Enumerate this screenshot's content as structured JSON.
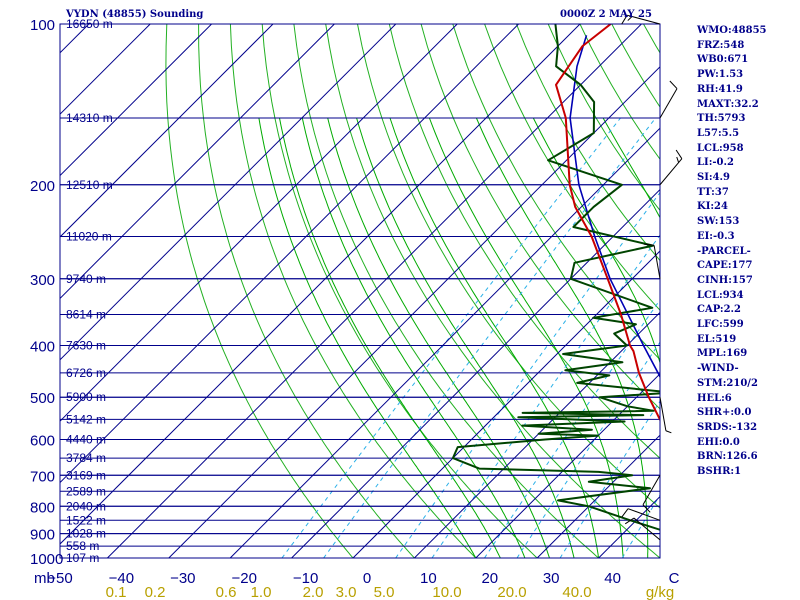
{
  "header": {
    "title": "VYDN (48855) Sounding",
    "datetime": "0000Z  2 MAY 25"
  },
  "indices": [
    "WMO:48855",
    "FRZ:548",
    "WB0:671",
    "PW:1.53",
    "RH:41.9",
    "MAXT:32.2",
    "TH:5793",
    "L57:5.5",
    "LCL:958",
    "LI:-0.2",
    "SI:4.9",
    "TT:37",
    "KI:24",
    "SW:153",
    "EI:-0.3",
    "-PARCEL-",
    "CAPE:177",
    "CINH:157",
    "LCL:934",
    "CAP:2.2",
    "LFC:599",
    "EL:519",
    "MPL:169",
    "-WIND-",
    "STM:210/2",
    "HEL:6",
    "SHR+:0.0",
    "SRDS:-132",
    "EHI:0.0",
    "BRN:126.6",
    "BSHR:1"
  ],
  "colors": {
    "frame": "#00008b",
    "isobar": "#00008b",
    "isotherm": "#00008b",
    "dry_adiabat": "#22b022",
    "moist_adiabat": "#00aa00",
    "mixing_ratio": "#2ab0e8",
    "temperature": "#c80000",
    "dewpoint": "#004400",
    "parcel": "#0000b4",
    "axis_text": "#00008b",
    "mixing_text": "#b8a000",
    "barb": "#000000"
  },
  "chart_data": {
    "type": "skew-t",
    "pressure_unit": "mb",
    "temperature_unit": "C",
    "mixing_ratio_unit": "g/kg",
    "ylim": [
      1000,
      100
    ],
    "xlim": [
      -50,
      50
    ],
    "pressure_ticks": [
      100,
      200,
      300,
      400,
      500,
      600,
      700,
      800,
      900,
      1000
    ],
    "temperature_ticks": [
      -50,
      -40,
      -30,
      -20,
      -10,
      0,
      10,
      20,
      30,
      40
    ],
    "temperature_tick_labels": [
      "−50",
      "−40",
      "−30",
      "−20",
      "−10",
      "0",
      "10",
      "20",
      "30",
      "40",
      "C"
    ],
    "y_axis_title": "mb",
    "mixing_ratio_labels": [
      "0.1",
      "0.2",
      "0.6",
      "1.0",
      "2.0",
      "3.0",
      "5.0",
      "10.0",
      "20.0",
      "40.0",
      "g/kg"
    ],
    "height_levels": [
      {
        "p": 100,
        "label": "16650 m"
      },
      {
        "p": 150,
        "label": "14310 m"
      },
      {
        "p": 200,
        "label": "12510 m"
      },
      {
        "p": 250,
        "label": "11020 m"
      },
      {
        "p": 300,
        "label": "9740 m"
      },
      {
        "p": 350,
        "label": "8614 m"
      },
      {
        "p": 400,
        "label": "7630 m"
      },
      {
        "p": 450,
        "label": "6726 m"
      },
      {
        "p": 500,
        "label": "5900 m"
      },
      {
        "p": 550,
        "label": "5142 m"
      },
      {
        "p": 600,
        "label": "4440 m"
      },
      {
        "p": 650,
        "label": "3784 m"
      },
      {
        "p": 700,
        "label": "3169 m"
      },
      {
        "p": 750,
        "label": "2589 m"
      },
      {
        "p": 800,
        "label": "2040 m"
      },
      {
        "p": 850,
        "label": "1522 m"
      },
      {
        "p": 900,
        "label": "1028 m"
      },
      {
        "p": 950,
        "label": "558 m"
      },
      {
        "p": 1000,
        "label": "107 m"
      }
    ],
    "temperature": [
      {
        "p": 1000,
        "t": 29.5
      },
      {
        "p": 985,
        "t": 25.5
      },
      {
        "p": 950,
        "t": 23.4
      },
      {
        "p": 900,
        "t": 22.5
      },
      {
        "p": 850,
        "t": 21.5
      },
      {
        "p": 800,
        "t": 18.5
      },
      {
        "p": 760,
        "t": 14.5
      },
      {
        "p": 730,
        "t": 12
      },
      {
        "p": 700,
        "t": 9.6
      },
      {
        "p": 650,
        "t": 6.5
      },
      {
        "p": 600,
        "t": 2.5
      },
      {
        "p": 550,
        "t": -2.6
      },
      {
        "p": 500,
        "t": -8
      },
      {
        "p": 450,
        "t": -13.6
      },
      {
        "p": 410,
        "t": -18
      },
      {
        "p": 400,
        "t": -19.5
      },
      {
        "p": 350,
        "t": -26
      },
      {
        "p": 300,
        "t": -34
      },
      {
        "p": 250,
        "t": -43.5
      },
      {
        "p": 220,
        "t": -51
      },
      {
        "p": 200,
        "t": -55.5
      },
      {
        "p": 150,
        "t": -67
      },
      {
        "p": 130,
        "t": -74
      },
      {
        "p": 110,
        "t": -76
      },
      {
        "p": 100,
        "t": -75
      }
    ],
    "dewpoint": [
      {
        "p": 1000,
        "t": 22.5
      },
      {
        "p": 985,
        "t": 22
      },
      {
        "p": 950,
        "t": 22
      },
      {
        "p": 900,
        "t": 18
      },
      {
        "p": 850,
        "t": 9
      },
      {
        "p": 800,
        "t": 0
      },
      {
        "p": 780,
        "t": -6
      },
      {
        "p": 740,
        "t": 7
      },
      {
        "p": 720,
        "t": -4
      },
      {
        "p": 700,
        "t": 2
      },
      {
        "p": 690,
        "t": -4
      },
      {
        "p": 680,
        "t": -24
      },
      {
        "p": 650,
        "t": -30
      },
      {
        "p": 620,
        "t": -31
      },
      {
        "p": 600,
        "t": -18
      },
      {
        "p": 590,
        "t": -10
      },
      {
        "p": 585,
        "t": -20
      },
      {
        "p": 575,
        "t": -12
      },
      {
        "p": 565,
        "t": -24
      },
      {
        "p": 555,
        "t": -8
      },
      {
        "p": 545,
        "t": -26
      },
      {
        "p": 540,
        "t": -6
      },
      {
        "p": 535,
        "t": -26
      },
      {
        "p": 530,
        "t": -5
      },
      {
        "p": 520,
        "t": -10
      },
      {
        "p": 500,
        "t": -16
      },
      {
        "p": 490,
        "t": -5
      },
      {
        "p": 470,
        "t": -22
      },
      {
        "p": 455,
        "t": -18
      },
      {
        "p": 445,
        "t": -26
      },
      {
        "p": 430,
        "t": -18
      },
      {
        "p": 415,
        "t": -29
      },
      {
        "p": 400,
        "t": -20
      },
      {
        "p": 380,
        "t": -24
      },
      {
        "p": 365,
        "t": -22
      },
      {
        "p": 355,
        "t": -30
      },
      {
        "p": 340,
        "t": -22
      },
      {
        "p": 300,
        "t": -40
      },
      {
        "p": 280,
        "t": -42
      },
      {
        "p": 260,
        "t": -32
      },
      {
        "p": 240,
        "t": -48
      },
      {
        "p": 220,
        "t": -48
      },
      {
        "p": 200,
        "t": -47
      },
      {
        "p": 180,
        "t": -63
      },
      {
        "p": 160,
        "t": -60
      },
      {
        "p": 140,
        "t": -65
      },
      {
        "p": 130,
        "t": -70
      },
      {
        "p": 120,
        "t": -77
      },
      {
        "p": 110,
        "t": -80
      },
      {
        "p": 100,
        "t": -84
      }
    ],
    "parcel": [
      {
        "p": 1000,
        "t": 25.5
      },
      {
        "p": 950,
        "t": 21.5
      },
      {
        "p": 934,
        "t": 20.5
      },
      {
        "p": 900,
        "t": 20
      },
      {
        "p": 850,
        "t": 19.5
      },
      {
        "p": 800,
        "t": 17.5
      },
      {
        "p": 700,
        "t": 12.2
      },
      {
        "p": 600,
        "t": 5.3
      },
      {
        "p": 500,
        "t": -4.4
      },
      {
        "p": 400,
        "t": -17.3
      },
      {
        "p": 300,
        "t": -33.6
      },
      {
        "p": 250,
        "t": -43
      },
      {
        "p": 200,
        "t": -54
      },
      {
        "p": 150,
        "t": -66.3
      },
      {
        "p": 120,
        "t": -73.6
      },
      {
        "p": 105,
        "t": -77.1
      }
    ],
    "wind_barbs": [
      {
        "p": 100,
        "dir": 285,
        "spd": 15
      },
      {
        "p": 150,
        "dir": 30,
        "spd": 10
      },
      {
        "p": 200,
        "dir": 40,
        "spd": 15
      },
      {
        "p": 300,
        "dir": 350,
        "spd": 10
      },
      {
        "p": 500,
        "dir": 170,
        "spd": 5
      },
      {
        "p": 700,
        "dir": 210,
        "spd": 10
      },
      {
        "p": 850,
        "dir": 290,
        "spd": 10
      },
      {
        "p": 925,
        "dir": 310,
        "spd": 10
      }
    ]
  }
}
